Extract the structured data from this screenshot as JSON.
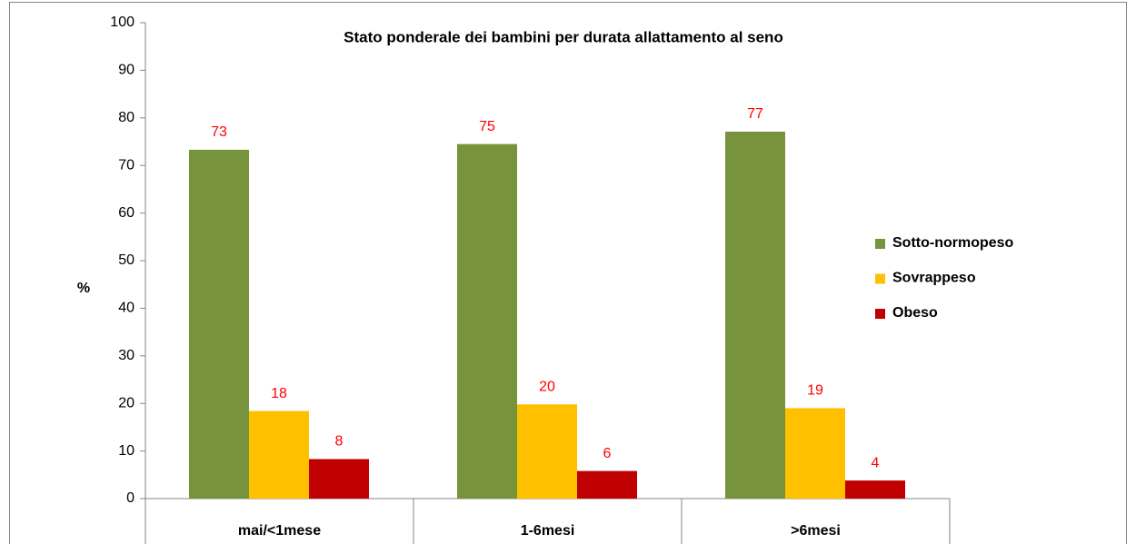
{
  "chart_data": {
    "type": "bar",
    "title": "Stato ponderale dei bambini  per durata allattamento al seno",
    "y_label": "%",
    "categories": [
      "mai/<1mese",
      "1-6mesi",
      ">6mesi"
    ],
    "series": [
      {
        "name": "Sotto-normopeso",
        "color": "#77933c",
        "values": [
          73.3,
          74.5,
          77.1
        ],
        "value_labels": [
          "73",
          "75",
          "77"
        ]
      },
      {
        "name": "Sovrappeso",
        "color": "#ffc000",
        "values": [
          18.4,
          19.8,
          19.0
        ],
        "value_labels": [
          "18",
          "20",
          "19"
        ]
      },
      {
        "name": "Obeso",
        "color": "#c00000",
        "values": [
          8.3,
          5.8,
          3.8
        ],
        "value_labels": [
          "8",
          "6",
          "4"
        ]
      }
    ],
    "ylim": [
      0,
      100
    ],
    "yticks": [
      0,
      10,
      20,
      30,
      40,
      50,
      60,
      70,
      80,
      90,
      100
    ],
    "grid": false,
    "legend": "right",
    "value_label_color": "#ff0000"
  }
}
